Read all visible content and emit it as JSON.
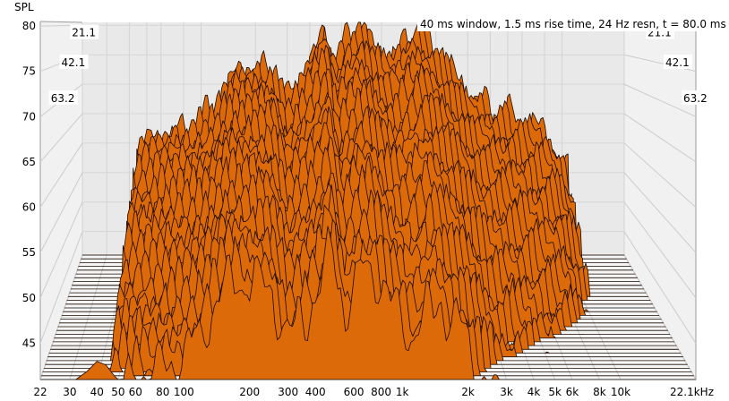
{
  "chart_data": {
    "type": "waterfall",
    "ylabel": "SPL",
    "info": "40 ms window, 1.5 ms rise time,  24 Hz resn, t = 80.0 ms",
    "y_ticks": [
      45,
      50,
      55,
      60,
      65,
      70,
      75,
      80
    ],
    "ylim": [
      41,
      80.5
    ],
    "x_tick_labels": [
      "22",
      "30",
      "40",
      "50",
      "60",
      "80",
      "100",
      "200",
      "300",
      "400",
      "600",
      "800",
      "1k",
      "2k",
      "3k",
      "4k",
      "5k",
      "6k",
      "8k",
      "10k",
      "22.1kHz"
    ],
    "x_tick_values": [
      22,
      30,
      40,
      50,
      60,
      80,
      100,
      200,
      300,
      400,
      600,
      800,
      1000,
      2000,
      3000,
      4000,
      5000,
      6000,
      8000,
      10000,
      22100
    ],
    "xlim": [
      22,
      22100
    ],
    "x_scale": "log",
    "time_ms_labels": [
      "21.1",
      "42.1",
      "63.2"
    ],
    "time_ms_range": [
      0,
      80.0
    ],
    "fill_color": "#dd6a09",
    "outline_color": "#1a0a00",
    "grid": true,
    "front_slice": {
      "time_ms": 0,
      "points": [
        [
          40,
          41.8
        ],
        [
          47,
          41.5
        ],
        [
          22,
          41
        ],
        [
          100,
          41
        ],
        [
          200,
          41
        ],
        [
          300,
          41.5
        ],
        [
          400,
          41.5
        ],
        [
          500,
          41.6
        ],
        [
          600,
          41.8
        ],
        [
          700,
          42
        ],
        [
          800,
          42
        ],
        [
          900,
          41
        ],
        [
          1000,
          41
        ]
      ]
    },
    "back_slice": {
      "time_ms": 80.0,
      "points": [
        [
          50,
          60
        ],
        [
          65,
          61.3
        ],
        [
          90,
          62.5
        ],
        [
          120,
          66
        ],
        [
          150,
          71
        ],
        [
          180,
          72
        ],
        [
          250,
          72
        ],
        [
          300,
          67
        ],
        [
          400,
          73.5
        ],
        [
          480,
          79
        ],
        [
          550,
          73.5
        ],
        [
          650,
          78
        ],
        [
          750,
          79.5
        ],
        [
          900,
          76
        ],
        [
          1100,
          74
        ],
        [
          1500,
          79
        ],
        [
          2000,
          75.5
        ],
        [
          3000,
          68
        ],
        [
          5000,
          65
        ],
        [
          8000,
          62
        ],
        [
          10000,
          56
        ]
      ]
    }
  }
}
